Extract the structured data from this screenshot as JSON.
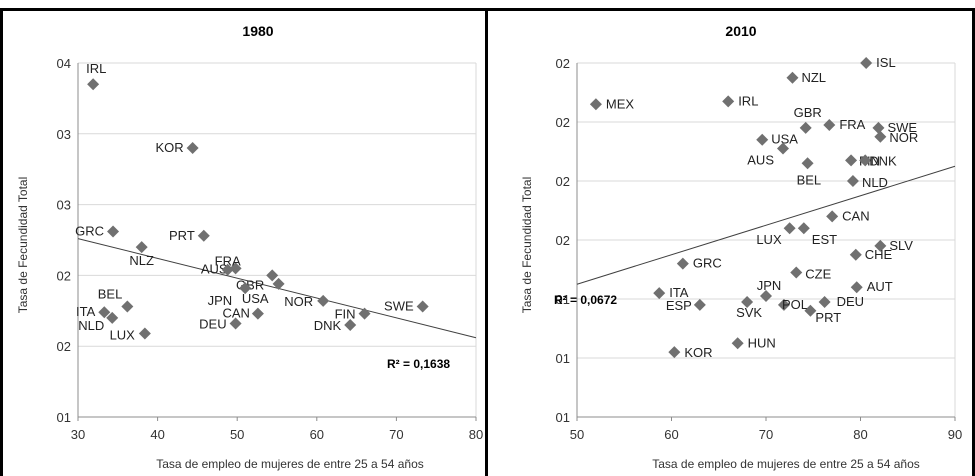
{
  "chart_data": [
    {
      "type": "scatter",
      "title": "1980",
      "xlabel": "Tasa de empleo de mujeres de entre 25 a 54 años",
      "ylabel": "Tasa de Fecundidad Total",
      "xlim": [
        30,
        80
      ],
      "xticks": [
        "30",
        "40",
        "50",
        "60",
        "70",
        "80"
      ],
      "yticks": [
        "01",
        "02",
        "02",
        "03",
        "03",
        "04"
      ],
      "points": [
        {
          "label": "IRL",
          "x": 31.9,
          "y": 3.25
        },
        {
          "label": "KOR",
          "x": 44.4,
          "y": 2.8
        },
        {
          "label": "GRC",
          "x": 34.4,
          "y": 2.21
        },
        {
          "label": "PRT",
          "x": 45.8,
          "y": 2.18
        },
        {
          "label": "NLZ",
          "x": 38.0,
          "y": 2.1
        },
        {
          "label": "AUS",
          "x": 49.8,
          "y": 1.95
        },
        {
          "label": "FRA",
          "x": 48.8,
          "y": 1.94
        },
        {
          "label": "GBR",
          "x": 54.4,
          "y": 1.9
        },
        {
          "label": "USA",
          "x": 55.2,
          "y": 1.84
        },
        {
          "label": "JPN",
          "x": 51.0,
          "y": 1.81
        },
        {
          "label": "NOR",
          "x": 60.8,
          "y": 1.72
        },
        {
          "label": "SWE",
          "x": 73.3,
          "y": 1.68
        },
        {
          "label": "FIN",
          "x": 66.0,
          "y": 1.63
        },
        {
          "label": "CAN",
          "x": 52.6,
          "y": 1.63
        },
        {
          "label": "DNK",
          "x": 64.2,
          "y": 1.55
        },
        {
          "label": "DEU",
          "x": 49.8,
          "y": 1.56
        },
        {
          "label": "BEL",
          "x": 36.2,
          "y": 1.68
        },
        {
          "label": "ITA",
          "x": 33.3,
          "y": 1.64
        },
        {
          "label": "NLD",
          "x": 34.3,
          "y": 1.6
        },
        {
          "label": "LUX",
          "x": 38.4,
          "y": 1.49
        }
      ],
      "trendline": {
        "x": [
          30,
          80
        ],
        "y": [
          2.16,
          1.46
        ]
      },
      "annotation": "R² = 0,1638"
    },
    {
      "type": "scatter",
      "title": "2010",
      "xlabel": "Tasa de empleo de mujeres de entre 25 a 54 años",
      "ylabel": "Tasa de Fecundidad Total",
      "xlim": [
        50,
        90
      ],
      "xticks": [
        "50",
        "60",
        "70",
        "80",
        "90"
      ],
      "yticks": [
        "01",
        "01",
        "01",
        "02",
        "02",
        "02",
        "02"
      ],
      "points": [
        {
          "label": "ISL",
          "x": 80.6,
          "y": 2.2
        },
        {
          "label": "NZL",
          "x": 72.8,
          "y": 2.15
        },
        {
          "label": "MEX",
          "x": 52.0,
          "y": 2.06
        },
        {
          "label": "IRL",
          "x": 66.0,
          "y": 2.07
        },
        {
          "label": "GBR",
          "x": 74.2,
          "y": 1.98
        },
        {
          "label": "FRA",
          "x": 76.7,
          "y": 1.99
        },
        {
          "label": "SWE",
          "x": 81.9,
          "y": 1.98
        },
        {
          "label": "NOR",
          "x": 82.1,
          "y": 1.95
        },
        {
          "label": "USA",
          "x": 69.6,
          "y": 1.94
        },
        {
          "label": "AUS",
          "x": 71.8,
          "y": 1.91
        },
        {
          "label": "FIN",
          "x": 79.0,
          "y": 1.87
        },
        {
          "label": "DNK",
          "x": 80.5,
          "y": 1.87
        },
        {
          "label": "BEL",
          "x": 74.4,
          "y": 1.86
        },
        {
          "label": "NLD",
          "x": 79.2,
          "y": 1.8
        },
        {
          "label": "CAN",
          "x": 77.0,
          "y": 1.68
        },
        {
          "label": "LUX",
          "x": 72.5,
          "y": 1.64
        },
        {
          "label": "EST",
          "x": 74.0,
          "y": 1.64
        },
        {
          "label": "SLV",
          "x": 82.1,
          "y": 1.58
        },
        {
          "label": "CHE",
          "x": 79.5,
          "y": 1.55
        },
        {
          "label": "GRC",
          "x": 61.2,
          "y": 1.52
        },
        {
          "label": "CZE",
          "x": 73.2,
          "y": 1.49
        },
        {
          "label": "AUT",
          "x": 79.6,
          "y": 1.44
        },
        {
          "label": "ITA",
          "x": 58.7,
          "y": 1.42
        },
        {
          "label": "ESP",
          "x": 63.0,
          "y": 1.38
        },
        {
          "label": "JPN",
          "x": 70.0,
          "y": 1.41
        },
        {
          "label": "POL",
          "x": 71.9,
          "y": 1.38
        },
        {
          "label": "SVK",
          "x": 68.0,
          "y": 1.39
        },
        {
          "label": "DEU",
          "x": 76.2,
          "y": 1.39
        },
        {
          "label": "PRT",
          "x": 74.7,
          "y": 1.36
        },
        {
          "label": "HUN",
          "x": 67.0,
          "y": 1.25
        },
        {
          "label": "KOR",
          "x": 60.3,
          "y": 1.22
        }
      ],
      "trendline": {
        "x": [
          50,
          90
        ],
        "y": [
          1.45,
          1.85
        ]
      },
      "annotation": "R² = 0,0672"
    }
  ]
}
